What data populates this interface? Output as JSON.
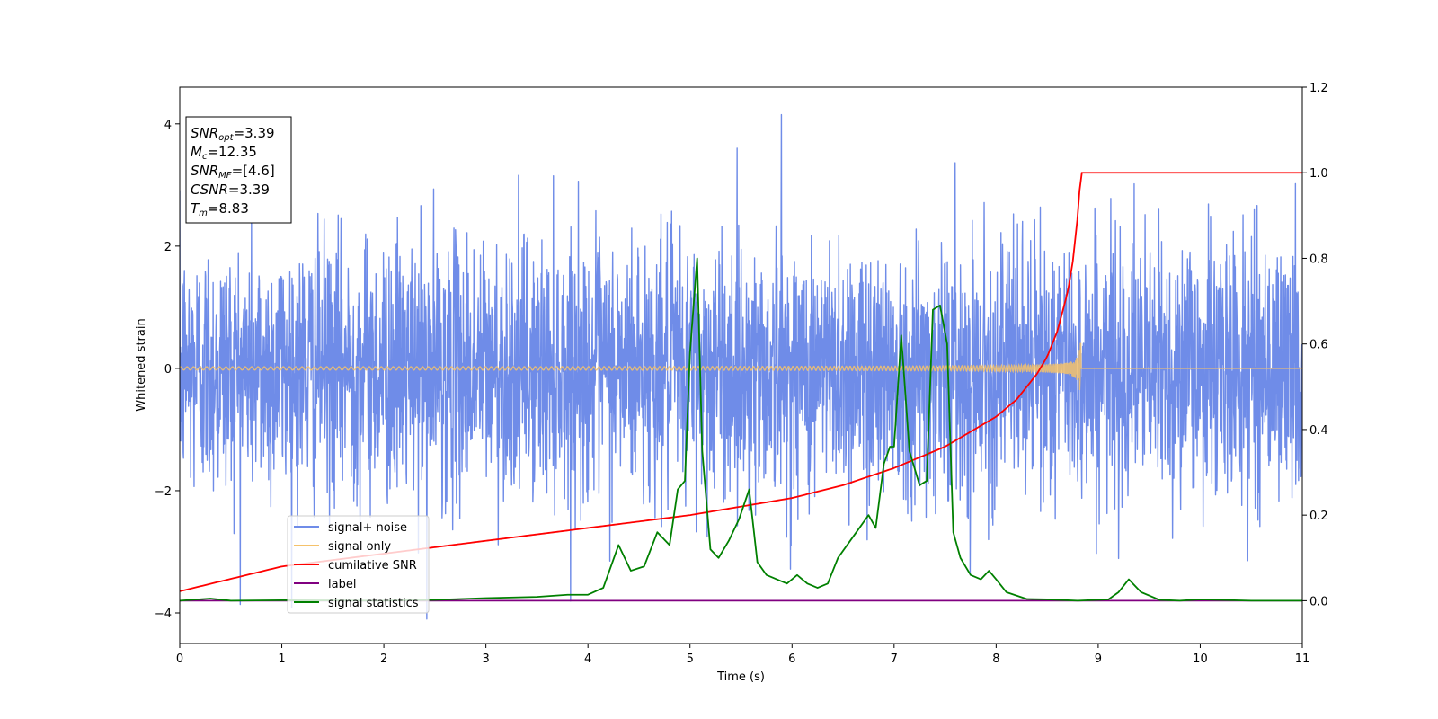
{
  "chart_data": {
    "type": "line",
    "title": "",
    "xlabel": "Time (s)",
    "ylabel": "Whitened strain",
    "y2label": "",
    "xlim": [
      0,
      11
    ],
    "ylim": [
      -4.5,
      4.6
    ],
    "y2lim": [
      -0.1,
      1.2
    ],
    "xticks": [
      0,
      1,
      2,
      3,
      4,
      5,
      6,
      7,
      8,
      9,
      10,
      11
    ],
    "yticks": [
      -4,
      -2,
      0,
      2,
      4
    ],
    "y2ticks": [
      0.0,
      0.2,
      0.4,
      0.6,
      0.8,
      1.0,
      1.2
    ],
    "xtick_labels": [
      "0",
      "1",
      "2",
      "3",
      "4",
      "5",
      "6",
      "7",
      "8",
      "9",
      "10",
      "11"
    ],
    "ytick_labels": [
      "−4",
      "−2",
      "0",
      "2",
      "4"
    ],
    "y2tick_labels": [
      "0.0",
      "0.2",
      "0.4",
      "0.6",
      "0.8",
      "1.0",
      "1.2"
    ],
    "grid": false,
    "legend_position": "lower-left",
    "annotation": {
      "lines": [
        {
          "sym": "SNR",
          "sub": "opt",
          "value": "=3.39"
        },
        {
          "sym": "M",
          "sub": "c",
          "value": "=12.35"
        },
        {
          "sym": "SNR",
          "sub": "MF",
          "value": "=[4.6]"
        },
        {
          "sym": "CSNR",
          "sub": "",
          "value": "=3.39"
        },
        {
          "sym": "T",
          "sub": "m",
          "value": "=8.83"
        }
      ]
    },
    "series": [
      {
        "name": "signal+ noise",
        "axis": "left",
        "color": "#6f8ce8",
        "kind": "noise",
        "noise_sigma": 1.05,
        "noise_max": 4.15,
        "noise_min": -4.1
      },
      {
        "name": "signal only",
        "axis": "left",
        "color": "#f5c26b",
        "kind": "chirp",
        "chirp_merger_time": 8.83,
        "chirp_peak": 0.6
      },
      {
        "name": "cumilative SNR",
        "axis": "right",
        "color": "#ff0000",
        "kind": "line",
        "x": [
          0,
          1,
          2,
          3,
          4,
          5,
          5.5,
          6,
          6.5,
          7,
          7.5,
          8,
          8.2,
          8.4,
          8.5,
          8.6,
          8.7,
          8.75,
          8.8,
          8.83,
          11
        ],
        "y": [
          0.022,
          0.08,
          0.11,
          0.14,
          0.17,
          0.2,
          0.22,
          0.24,
          0.27,
          0.31,
          0.36,
          0.43,
          0.47,
          0.53,
          0.57,
          0.63,
          0.72,
          0.79,
          0.9,
          1.0,
          1.0
        ]
      },
      {
        "name": "label",
        "axis": "right",
        "color": "#800080",
        "kind": "line",
        "x": [
          0,
          11
        ],
        "y": [
          0,
          0
        ]
      },
      {
        "name": "signal statistics",
        "axis": "right",
        "color": "#008000",
        "kind": "line",
        "x": [
          0,
          0.3,
          0.5,
          1,
          2,
          2.5,
          3,
          3.5,
          3.8,
          4,
          4.15,
          4.3,
          4.42,
          4.55,
          4.68,
          4.8,
          4.88,
          4.95,
          5.0,
          5.07,
          5.12,
          5.2,
          5.28,
          5.38,
          5.48,
          5.58,
          5.66,
          5.75,
          5.85,
          5.95,
          6.05,
          6.15,
          6.25,
          6.35,
          6.45,
          6.6,
          6.75,
          6.82,
          6.9,
          6.96,
          7.0,
          7.07,
          7.15,
          7.25,
          7.32,
          7.38,
          7.45,
          7.52,
          7.58,
          7.65,
          7.75,
          7.85,
          7.93,
          8.0,
          8.1,
          8.3,
          8.5,
          8.8,
          9.1,
          9.2,
          9.3,
          9.42,
          9.6,
          9.8,
          10,
          10.5,
          11
        ],
        "y": [
          0.0,
          0.005,
          0.0,
          0.001,
          0.0,
          0.002,
          0.006,
          0.009,
          0.014,
          0.014,
          0.03,
          0.13,
          0.07,
          0.08,
          0.16,
          0.13,
          0.26,
          0.28,
          0.58,
          0.8,
          0.35,
          0.12,
          0.1,
          0.14,
          0.19,
          0.26,
          0.09,
          0.06,
          0.05,
          0.04,
          0.06,
          0.04,
          0.03,
          0.04,
          0.1,
          0.15,
          0.2,
          0.17,
          0.32,
          0.36,
          0.36,
          0.62,
          0.35,
          0.27,
          0.28,
          0.68,
          0.69,
          0.6,
          0.16,
          0.1,
          0.06,
          0.05,
          0.07,
          0.05,
          0.02,
          0.004,
          0.003,
          0.0,
          0.003,
          0.02,
          0.05,
          0.02,
          0.002,
          0.0,
          0.003,
          0.0,
          0.0
        ]
      }
    ]
  }
}
